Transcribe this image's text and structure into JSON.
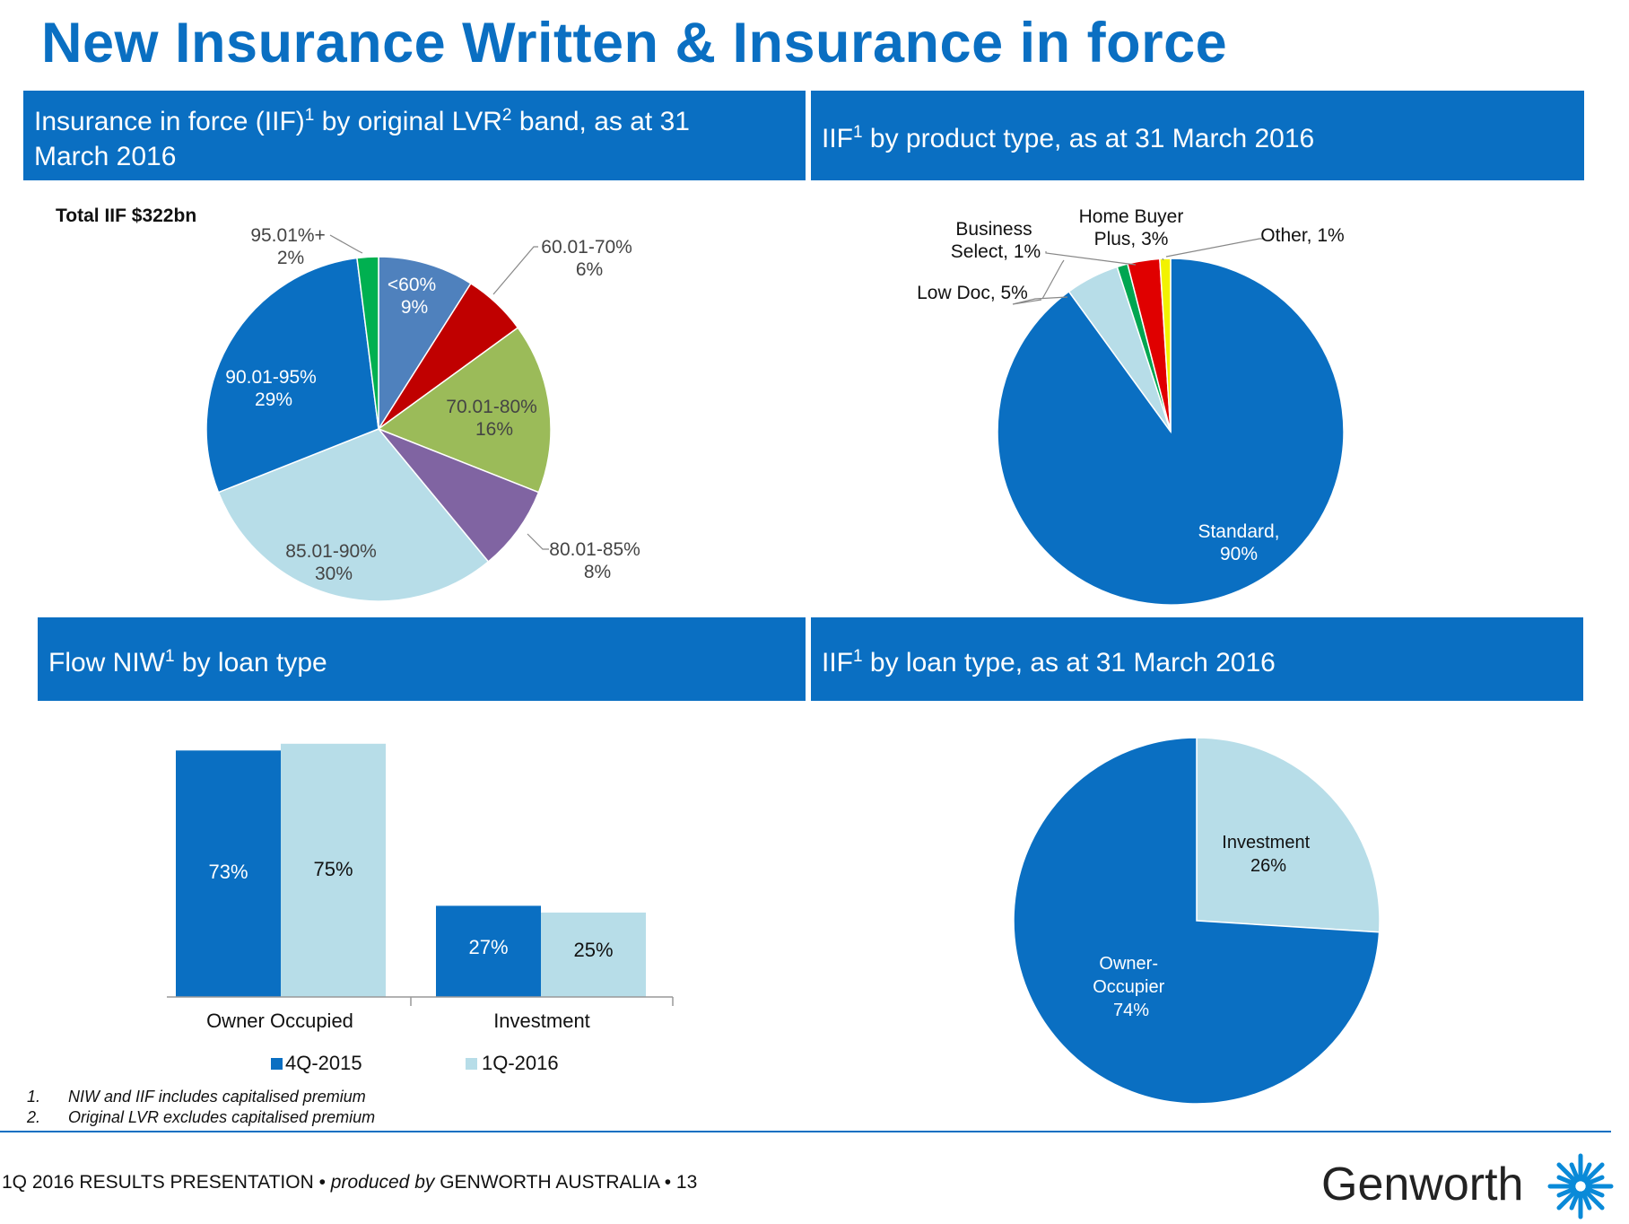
{
  "page": {
    "title": "New Insurance Written & Insurance in force",
    "footnotes": [
      {
        "num": "1.",
        "text": "NIW and IIF includes capitalised premium"
      },
      {
        "num": "2.",
        "text": "Original LVR excludes capitalised premium"
      }
    ],
    "footer": {
      "part1": "1Q 2016 RESULTS PRESENTATION • ",
      "part2": "produced by",
      "part3": " GENWORTH AUSTRALIA • 13"
    },
    "logo": "Genworth",
    "colors": {
      "brand": "#0a6fc2"
    }
  },
  "panels": {
    "lvr": {
      "title_a": "Insurance in force (IIF)",
      "sup1": "1",
      "title_b": " by original LVR",
      "sup2": "2",
      "title_c": " band, as at 31 March 2016"
    },
    "product": {
      "title_a": "IIF",
      "sup1": "1",
      "title_b": " by product type, as at 31 March 2016"
    },
    "flow": {
      "title_a": "Flow NIW",
      "sup1": "1",
      "title_b": " by loan type"
    },
    "loan": {
      "title_a": "IIF",
      "sup1": "1",
      "title_b": " by loan type, as at 31 March 2016"
    }
  },
  "chart_data": [
    {
      "id": "lvr",
      "type": "pie",
      "title": "Total IIF $322bn",
      "slices": [
        {
          "name": "<60%",
          "label": "9%",
          "value": 9,
          "color": "#4f81bd"
        },
        {
          "name": "60.01-70%",
          "label": "6%",
          "value": 6,
          "color": "#c00000"
        },
        {
          "name": "70.01-80%",
          "label": "16%",
          "value": 16,
          "color": "#9bbb59"
        },
        {
          "name": "80.01-85%",
          "label": "8%",
          "value": 8,
          "color": "#8064a2"
        },
        {
          "name": "85.01-90%",
          "label": "30%",
          "value": 30,
          "color": "#b7dde8"
        },
        {
          "name": "90.01-95%",
          "label": "29%",
          "value": 29,
          "color": "#0a6fc2"
        },
        {
          "name": "95.01%+",
          "label": "2%",
          "value": 2,
          "color": "#00b050"
        }
      ]
    },
    {
      "id": "product",
      "type": "pie",
      "slices": [
        {
          "name": "Standard,",
          "label": "90%",
          "value": 90,
          "color": "#0a6fc2"
        },
        {
          "name": "Low Doc, 5%",
          "label": "",
          "value": 5,
          "color": "#b7dde8"
        },
        {
          "name": "Business",
          "label": "Select, 1%",
          "value": 1,
          "color": "#00a651"
        },
        {
          "name": "Home Buyer",
          "label": "Plus, 3%",
          "value": 3,
          "color": "#e00000"
        },
        {
          "name": "Other, 1%",
          "label": "",
          "value": 1,
          "color": "#f2f200"
        }
      ]
    },
    {
      "id": "flow",
      "type": "bar",
      "categories": [
        "Owner Occupied",
        "Investment"
      ],
      "series": [
        {
          "name": "4Q-2015",
          "values": [
            73,
            27
          ],
          "labels": [
            "73%",
            "27%"
          ],
          "color": "#0a6fc2"
        },
        {
          "name": "1Q-2016",
          "values": [
            75,
            25
          ],
          "labels": [
            "75%",
            "25%"
          ],
          "color": "#b7dde8"
        }
      ],
      "ylim": [
        0,
        80
      ]
    },
    {
      "id": "loan",
      "type": "pie",
      "slices": [
        {
          "name": "Investment",
          "label": "26%",
          "value": 26,
          "color": "#b7dde8"
        },
        {
          "name": "Owner-",
          "name2": "Occupier",
          "label": "74%",
          "value": 74,
          "color": "#0a6fc2"
        }
      ]
    }
  ]
}
